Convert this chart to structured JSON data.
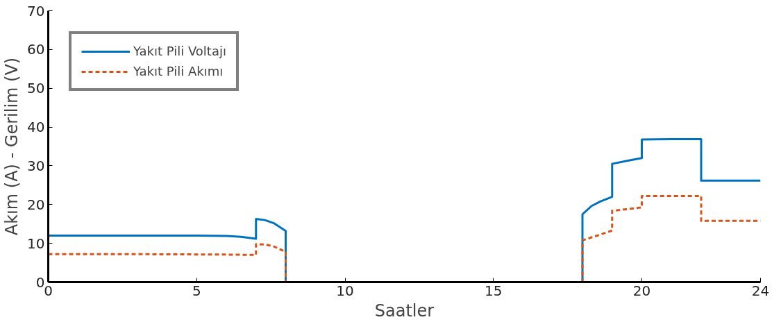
{
  "chart_data": {
    "type": "line",
    "xlabel": "Saatler",
    "ylabel": "Akım (A) - Gerilim (V)",
    "xlim": [
      0,
      24
    ],
    "ylim": [
      0,
      70
    ],
    "xticks": [
      0,
      5,
      10,
      15,
      20,
      24
    ],
    "yticks": [
      0,
      10,
      20,
      30,
      40,
      50,
      60,
      70
    ],
    "grid": false,
    "legend": "top left",
    "marker": "none",
    "series": [
      {
        "name": "Yakıt Pili Voltajı",
        "color": "#0072bd",
        "line_style": "solid",
        "x": [
          0,
          3,
          5,
          6,
          6.5,
          7,
          7,
          7.3,
          7.6,
          8,
          8,
          9,
          18,
          18,
          18.3,
          18.6,
          19,
          19,
          19.5,
          20,
          20,
          21,
          22,
          22,
          24
        ],
        "values": [
          12,
          12,
          12,
          11.9,
          11.7,
          11.2,
          16.3,
          16,
          15.2,
          13.2,
          0,
          0,
          0,
          17.5,
          19.6,
          20.8,
          22,
          30.5,
          31.3,
          32,
          36.8,
          36.9,
          36.9,
          26.2,
          26.2
        ]
      },
      {
        "name": "Yakıt Pili Akımı",
        "color": "#d95319",
        "line_style": "dashed",
        "x": [
          0,
          3,
          6,
          7,
          7,
          7.3,
          7.6,
          8,
          8,
          9,
          18,
          18,
          18.5,
          19,
          19,
          19.5,
          20,
          20,
          22,
          22,
          24
        ],
        "values": [
          7.2,
          7.2,
          7.1,
          7,
          9.8,
          9.7,
          9.2,
          7.8,
          0,
          0,
          0,
          10.8,
          12,
          13.3,
          18.4,
          18.8,
          19.3,
          22.2,
          22.2,
          15.8,
          15.8
        ]
      }
    ]
  }
}
